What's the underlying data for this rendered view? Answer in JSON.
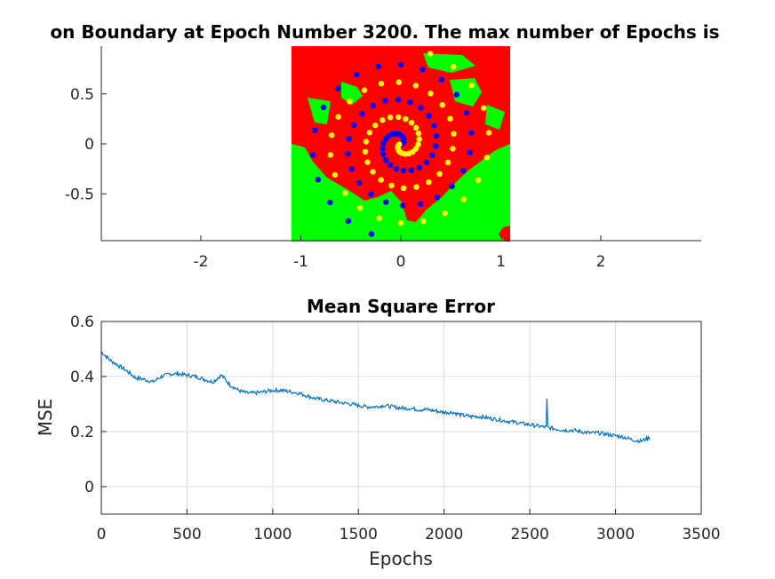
{
  "chart_data": [
    {
      "type": "scatter",
      "title": "on Boundary at Epoch Number 3200. The max number of Epochs is",
      "xlim": [
        -3,
        3
      ],
      "ylim": [
        -1,
        1
      ],
      "xticks": [
        -2,
        -1,
        0,
        1,
        2
      ],
      "xtick_labels": [
        "-2",
        "-1",
        "0",
        "1",
        "2"
      ],
      "yticks": [
        -0.5,
        0,
        0.5
      ],
      "ytick_labels": [
        "-0.5",
        "0",
        "0.5"
      ],
      "boundary_extent": {
        "x": [
          -1.05,
          1.05
        ],
        "y": [
          -1,
          1
        ]
      },
      "class_colors": {
        "region_a": "#ff0000",
        "region_b": "#00ff00",
        "class_a_points": "#0000ff",
        "class_b_points": "#ffff00"
      },
      "spiral": {
        "turns": 2.7,
        "r_max": 0.95,
        "points_per_class": 60
      }
    },
    {
      "type": "line",
      "title": "Mean Square Error",
      "xlabel": "Epochs",
      "ylabel": "MSE",
      "xlim": [
        0,
        3500
      ],
      "ylim": [
        -0.1,
        0.6
      ],
      "xticks": [
        0,
        500,
        1000,
        1500,
        2000,
        2500,
        3000,
        3500
      ],
      "xtick_labels": [
        "0",
        "500",
        "1000",
        "1500",
        "2000",
        "2500",
        "3000",
        "3500"
      ],
      "yticks": [
        0,
        0.2,
        0.4,
        0.6
      ],
      "ytick_labels": [
        "0",
        "0.2",
        "0.4",
        "0.6"
      ],
      "grid": true,
      "line_color": "#0072bd",
      "series": [
        {
          "x": [
            0,
            50,
            100,
            150,
            200,
            250,
            300,
            350,
            400,
            450,
            500,
            550,
            600,
            650,
            700,
            750,
            800,
            850,
            900,
            950,
            1000,
            1050,
            1100,
            1150,
            1200,
            1250,
            1300,
            1350,
            1400,
            1450,
            1500,
            1550,
            1600,
            1650,
            1700,
            1750,
            1800,
            1850,
            1900,
            1950,
            2000,
            2050,
            2100,
            2150,
            2200,
            2250,
            2300,
            2350,
            2400,
            2450,
            2500,
            2550,
            2600,
            2650,
            2700,
            2750,
            2800,
            2850,
            2900,
            2950,
            3000,
            3050,
            3100,
            3150,
            3200
          ],
          "values": [
            0.49,
            0.46,
            0.44,
            0.42,
            0.395,
            0.39,
            0.38,
            0.4,
            0.41,
            0.41,
            0.405,
            0.4,
            0.39,
            0.38,
            0.405,
            0.37,
            0.35,
            0.34,
            0.34,
            0.345,
            0.35,
            0.35,
            0.345,
            0.34,
            0.33,
            0.32,
            0.315,
            0.31,
            0.305,
            0.3,
            0.295,
            0.29,
            0.29,
            0.295,
            0.29,
            0.285,
            0.285,
            0.28,
            0.28,
            0.275,
            0.27,
            0.27,
            0.26,
            0.255,
            0.255,
            0.25,
            0.245,
            0.24,
            0.235,
            0.23,
            0.225,
            0.22,
            0.215,
            0.21,
            0.205,
            0.205,
            0.2,
            0.195,
            0.195,
            0.19,
            0.185,
            0.18,
            0.17,
            0.165,
            0.18
          ]
        }
      ],
      "spike": {
        "x": 2600,
        "y": 0.32
      }
    }
  ]
}
